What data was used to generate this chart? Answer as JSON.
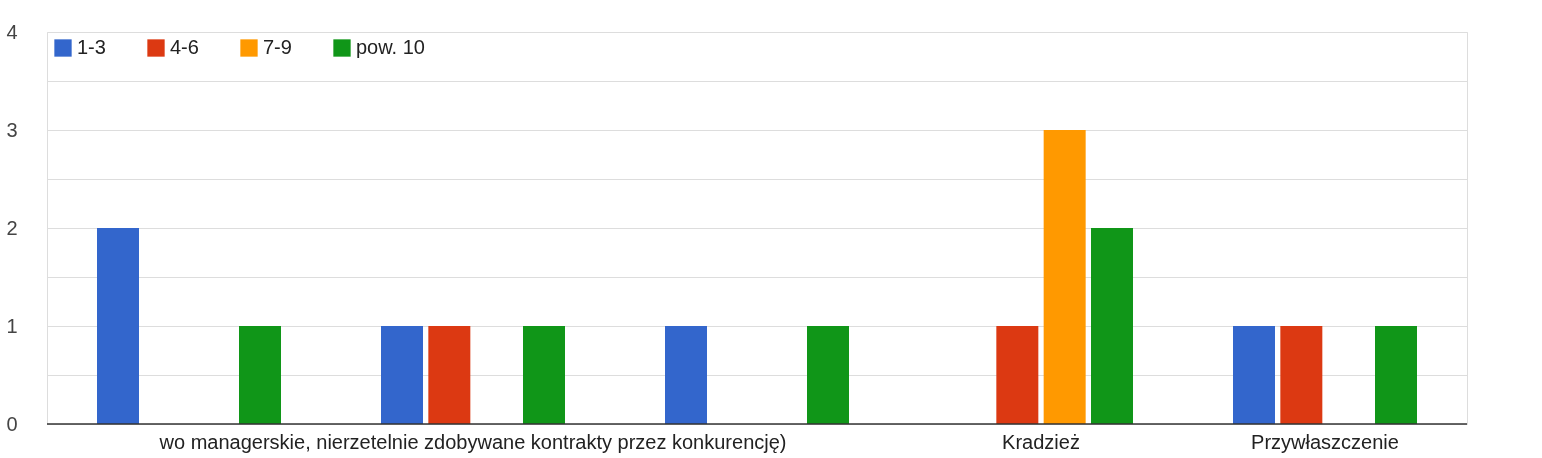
{
  "chart_data": {
    "type": "bar",
    "categories": [
      null,
      "wo managerskie, nierzetelnie zdobywane kontrakty przez konkurencję)",
      null,
      "Kradzież",
      "Przywłaszczenie"
    ],
    "series": [
      {
        "name": "1-3",
        "color": "#3366cc",
        "values": [
          2,
          1,
          1,
          0,
          1
        ]
      },
      {
        "name": "4-6",
        "color": "#dc3912",
        "values": [
          0,
          1,
          0,
          1,
          1
        ]
      },
      {
        "name": "7-9",
        "color": "#ff9900",
        "values": [
          0,
          0,
          0,
          3,
          0
        ]
      },
      {
        "name": "pow. 10",
        "color": "#109618",
        "values": [
          1,
          1,
          1,
          2,
          1
        ]
      }
    ],
    "ylim": [
      0,
      4
    ],
    "yticks": [
      0,
      {
        "value": 0.5,
        "label": null
      },
      1,
      {
        "value": 1.5,
        "label": null
      },
      2,
      {
        "value": 2.5,
        "label": null
      },
      3,
      {
        "value": 3.5,
        "label": null
      },
      4
    ],
    "grid": "y",
    "legend": "top left"
  }
}
